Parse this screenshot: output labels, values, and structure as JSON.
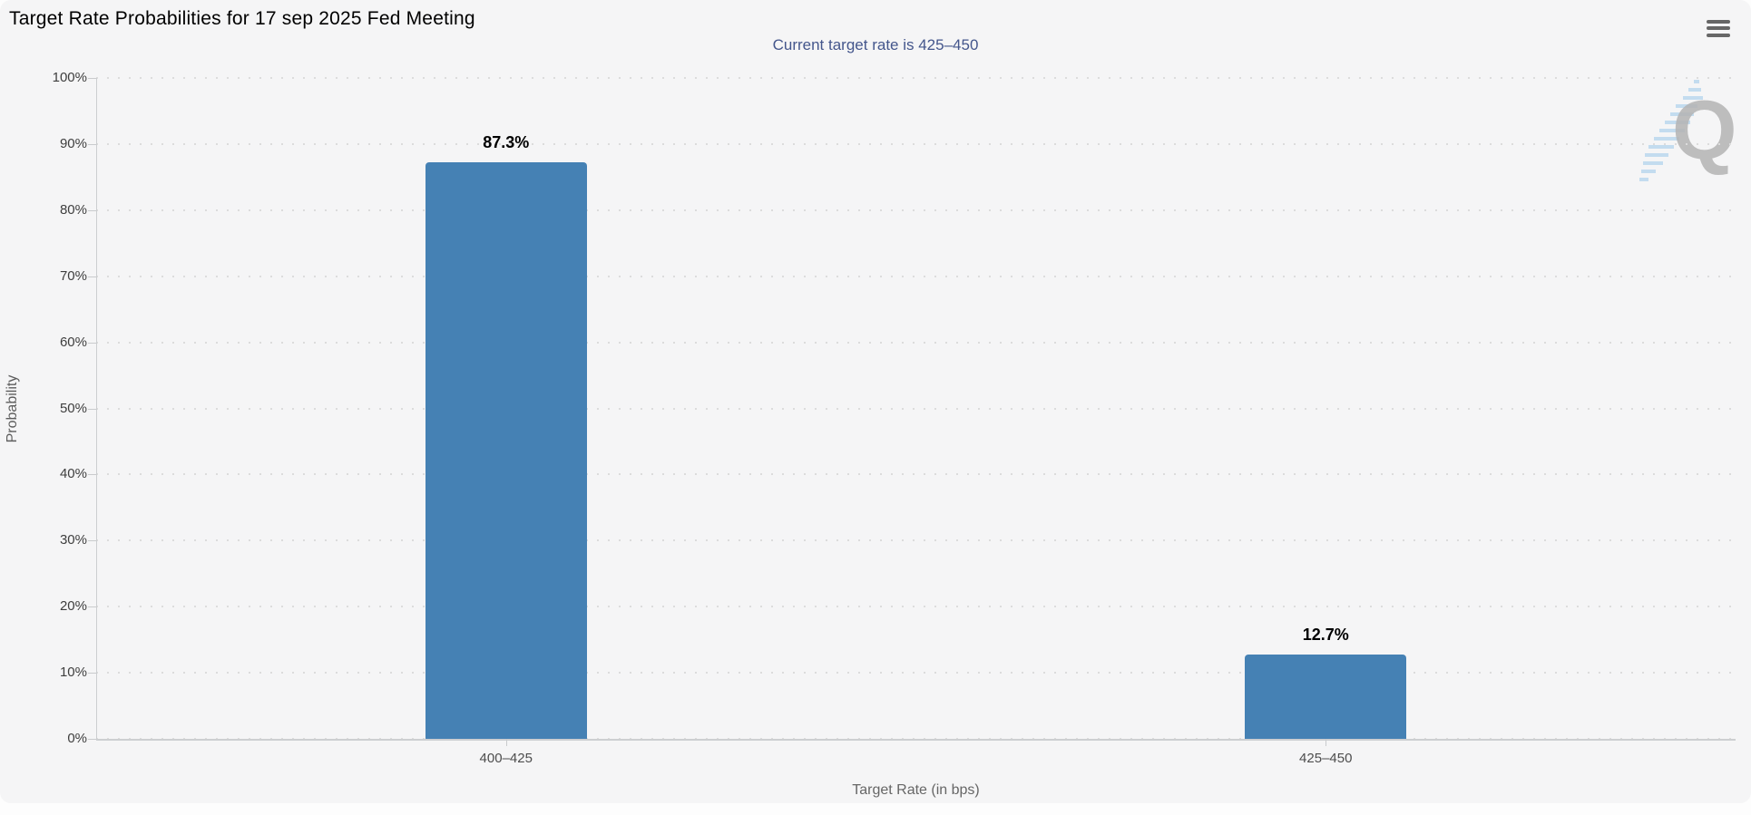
{
  "header": {
    "menu_icon": "hamburger-icon"
  },
  "chart_data": {
    "type": "bar",
    "title": "Target Rate Probabilities for 17 sep 2025 Fed Meeting",
    "subtitle": "Current target rate is 425–450",
    "categories": [
      "400–425",
      "425–450"
    ],
    "values": [
      87.3,
      12.7
    ],
    "value_labels": [
      "87.3%",
      "12.7%"
    ],
    "xlabel": "Target Rate (in bps)",
    "ylabel": "Probability",
    "ylim": [
      0,
      100
    ],
    "ytick_step": 10,
    "ytick_suffix": "%",
    "grid": "horizontal dotted",
    "legend": "none",
    "bar_color": "#4581B4"
  },
  "watermark": {
    "letter": "Q",
    "letter_color": "#b4b4b4",
    "streak_color": "#b3d4ed"
  },
  "colors": {
    "subtitle": "#44568C",
    "title": "#000000",
    "panel_bg": "#f5f5f6",
    "grid": "#dcdcdc",
    "axis": "#cccccc"
  }
}
